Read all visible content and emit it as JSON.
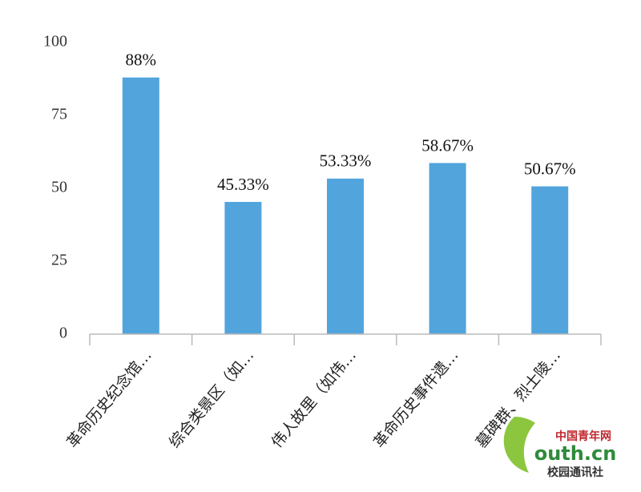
{
  "chart_data": {
    "type": "bar",
    "categories": [
      "革命历史纪念馆…",
      "综合类景区（如…",
      "伟人故里（如伟…",
      "革命历史事件遗…",
      "墓碑群、烈士陵…"
    ],
    "values": [
      88,
      45.33,
      53.33,
      58.67,
      50.67
    ],
    "value_labels": [
      "88%",
      "45.33%",
      "53.33%",
      "58.67%",
      "50.67%"
    ],
    "color": "#52a4dd",
    "ylim": [
      0,
      100
    ],
    "yticks": [
      0,
      25,
      50,
      75,
      100
    ],
    "grid": false,
    "watermark": {
      "brand": "中国青年网",
      "site": "outh.cn",
      "sub": "校园通讯社"
    }
  }
}
